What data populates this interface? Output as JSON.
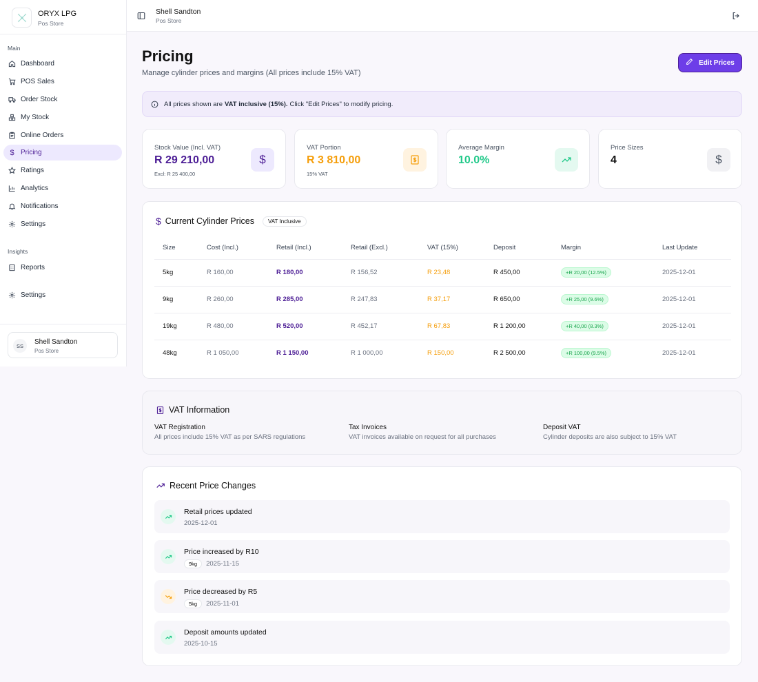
{
  "brand": {
    "name": "ORYX LPG",
    "subtitle": "Pos Store"
  },
  "sidebar": {
    "main_label": "Main",
    "items": [
      {
        "label": "Dashboard",
        "icon": "home-icon"
      },
      {
        "label": "POS Sales",
        "icon": "cart-icon"
      },
      {
        "label": "Order Stock",
        "icon": "truck-icon"
      },
      {
        "label": "My Stock",
        "icon": "boxes-icon"
      },
      {
        "label": "Online Orders",
        "icon": "clipboard-icon"
      },
      {
        "label": "Pricing",
        "icon": "dollar-icon",
        "active": true
      },
      {
        "label": "Ratings",
        "icon": "star-icon"
      },
      {
        "label": "Analytics",
        "icon": "bar-chart-icon"
      },
      {
        "label": "Notifications",
        "icon": "bell-icon"
      },
      {
        "label": "Settings",
        "icon": "gear-icon"
      }
    ],
    "insights_label": "Insights",
    "reports_label": "Reports",
    "settings_label": "Settings",
    "user": {
      "initials": "SS",
      "name": "Shell Sandton",
      "role": "Pos Store"
    }
  },
  "topbar": {
    "title": "Shell Sandton",
    "subtitle": "Pos Store"
  },
  "page": {
    "title": "Pricing",
    "subtitle": "Manage cylinder prices and margins (All prices include 15% VAT)",
    "edit_button": "Edit Prices",
    "banner_pre": "All prices shown are",
    "banner_bold": "VAT inclusive (15%).",
    "banner_post": "Click \"Edit Prices\" to modify pricing."
  },
  "stats": [
    {
      "label": "Stock Value (Incl. VAT)",
      "value": "R 29 210,00",
      "sub": "Excl: R 25 400,00",
      "color": "#4c1d95"
    },
    {
      "label": "VAT Portion",
      "value": "R 3 810,00",
      "sub": "15% VAT",
      "color": "#f59e0b"
    },
    {
      "label": "Average Margin",
      "value": "10.0%",
      "sub": "",
      "color": "#22c98a"
    },
    {
      "label": "Price Sizes",
      "value": "4",
      "sub": "",
      "color": "#111111"
    }
  ],
  "prices": {
    "title": "Current Cylinder Prices",
    "badge": "VAT Inclusive",
    "headers": [
      "Size",
      "Cost (Incl.)",
      "Retail (Incl.)",
      "Retail (Excl.)",
      "VAT (15%)",
      "Deposit",
      "Margin",
      "Last Update"
    ],
    "rows": [
      {
        "size": "5kg",
        "cost": "R 160,00",
        "retail": "R 180,00",
        "retail_excl": "R 156,52",
        "vat": "R 23,48",
        "deposit": "R 450,00",
        "margin": "+R 20,00 (12.5%)",
        "date": "2025-12-01"
      },
      {
        "size": "9kg",
        "cost": "R 260,00",
        "retail": "R 285,00",
        "retail_excl": "R 247,83",
        "vat": "R 37,17",
        "deposit": "R 650,00",
        "margin": "+R 25,00 (9.6%)",
        "date": "2025-12-01"
      },
      {
        "size": "19kg",
        "cost": "R 480,00",
        "retail": "R 520,00",
        "retail_excl": "R 452,17",
        "vat": "R 67,83",
        "deposit": "R 1 200,00",
        "margin": "+R 40,00 (8.3%)",
        "date": "2025-12-01"
      },
      {
        "size": "48kg",
        "cost": "R 1 050,00",
        "retail": "R 1 150,00",
        "retail_excl": "R 1 000,00",
        "vat": "R 150,00",
        "deposit": "R 2 500,00",
        "margin": "+R 100,00 (9.5%)",
        "date": "2025-12-01"
      }
    ]
  },
  "vat_info": {
    "title": "VAT Information",
    "items": [
      {
        "title": "VAT Registration",
        "desc": "All prices include 15% VAT as per SARS regulations"
      },
      {
        "title": "Tax Invoices",
        "desc": "VAT invoices available on request for all purchases"
      },
      {
        "title": "Deposit VAT",
        "desc": "Cylinder deposits are also subject to 15% VAT"
      }
    ]
  },
  "changes": {
    "title": "Recent Price Changes",
    "items": [
      {
        "title": "Retail prices updated",
        "date": "2025-12-01",
        "size": "",
        "direction": "up"
      },
      {
        "title": "Price increased by R10",
        "date": "2025-11-15",
        "size": "9kg",
        "direction": "up"
      },
      {
        "title": "Price decreased by R5",
        "date": "2025-11-01",
        "size": "5kg",
        "direction": "down"
      },
      {
        "title": "Deposit amounts updated",
        "date": "2025-10-15",
        "size": "",
        "direction": "up"
      }
    ]
  },
  "colors": {
    "accent": "#6d3ee8",
    "positive": "#22c98a",
    "vat": "#f59e0b"
  }
}
